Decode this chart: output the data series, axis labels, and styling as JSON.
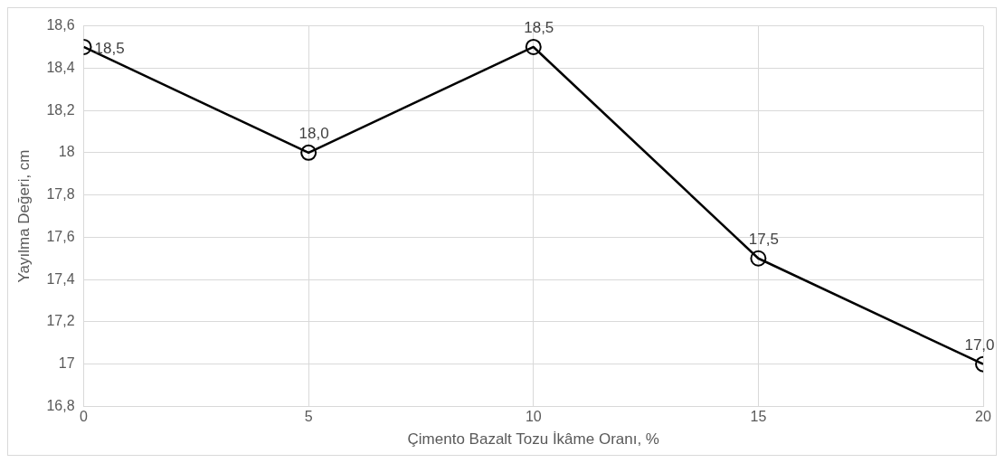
{
  "chart_data": {
    "type": "line",
    "xlabel": "Çimento Bazalt Tozu İkâme Oranı, %",
    "ylabel": "Yayılma Değeri, cm",
    "x": [
      0,
      5,
      10,
      15,
      20
    ],
    "series": [
      {
        "color": "#000000",
        "values": [
          18.5,
          18.0,
          18.5,
          17.5,
          17.0
        ],
        "value_labels": [
          "18,5",
          "18,0",
          "18,5",
          "17,5",
          "17,0"
        ]
      }
    ],
    "xlim": [
      0,
      20
    ],
    "xticks": [
      0,
      5,
      10,
      15,
      20
    ],
    "ylim": [
      16.8,
      18.6
    ],
    "yticks": [
      {
        "value": 16.8,
        "label": "16,8"
      },
      {
        "value": 17,
        "label": "17"
      },
      {
        "value": 17.2,
        "label": "17,2"
      },
      {
        "value": 17.4,
        "label": "17,4"
      },
      {
        "value": 17.6,
        "label": "17,6"
      },
      {
        "value": 17.8,
        "label": "17,8"
      },
      {
        "value": 18,
        "label": "18"
      },
      {
        "value": 18.2,
        "label": "18,2"
      },
      {
        "value": 18.4,
        "label": "18,4"
      },
      {
        "value": 18.6,
        "label": "18,6"
      }
    ],
    "grid": true,
    "marker": "circle",
    "line_style": "solid"
  }
}
